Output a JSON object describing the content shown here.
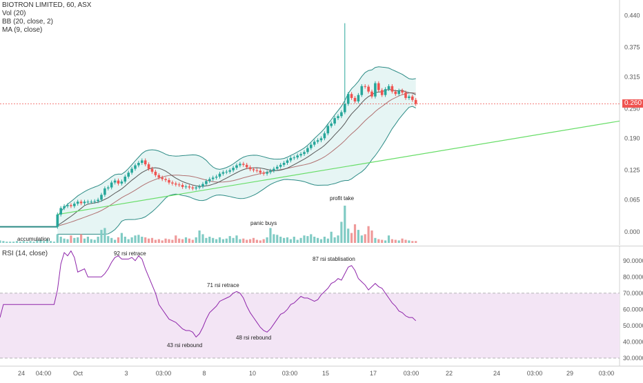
{
  "legend": {
    "symbol": "BIOTRON LIMITED, 60, ASX",
    "volume": "Vol (20)",
    "bb": "BB (20, close, 2)",
    "ma": "MA (9, close)",
    "rsi": "RSI (14, close)"
  },
  "price_axis": {
    "ticks": [
      "0.440",
      "0.375",
      "0.315",
      "0.250",
      "0.190",
      "0.125",
      "0.065",
      "0.000"
    ],
    "current_price": "0.260"
  },
  "rsi_axis": {
    "ticks": [
      "90.0000",
      "80.0000",
      "70.0000",
      "60.0000",
      "50.0000",
      "40.0000",
      "30.0000"
    ]
  },
  "time_axis": {
    "ticks": [
      "24",
      "04:00",
      "Oct",
      "3",
      "03:00",
      "8",
      "10",
      "03:00",
      "15",
      "17",
      "03:00",
      "22",
      "24",
      "03:00",
      "29",
      "03:00"
    ]
  },
  "annotations": {
    "accumulation": "accumulation",
    "panic_buys": "panic buys",
    "profit_take": "profit take",
    "rsi_92": "92 rsi retrace",
    "rsi_71": "71 rsi retrace",
    "rsi_87": "87 rsi stablisation",
    "rsi_43": "43 rsi rebound",
    "rsi_48": "48 rsi rebound"
  },
  "colors": {
    "up": "#26a69a",
    "down": "#ef5350",
    "bb_fill": "#e0f2f1",
    "rsi_band": "#f3e5f5",
    "rsi_line": "#8e24aa",
    "trendline": "#66dd66",
    "ma": "#555555"
  },
  "chart_data": {
    "type": "candlestick",
    "y_range": [
      -0.02,
      0.46
    ],
    "close_prices": [
      0.01,
      0.01,
      0.01,
      0.01,
      0.01,
      0.01,
      0.01,
      0.01,
      0.01,
      0.01,
      0.01,
      0.01,
      0.01,
      0.01,
      0.01,
      0.01,
      0.01,
      0.035,
      0.048,
      0.052,
      0.054,
      0.052,
      0.057,
      0.061,
      0.058,
      0.061,
      0.061,
      0.061,
      0.062,
      0.065,
      0.075,
      0.088,
      0.09,
      0.1,
      0.104,
      0.098,
      0.102,
      0.112,
      0.12,
      0.128,
      0.135,
      0.14,
      0.145,
      0.137,
      0.128,
      0.122,
      0.115,
      0.11,
      0.107,
      0.105,
      0.1,
      0.098,
      0.096,
      0.095,
      0.091,
      0.092,
      0.09,
      0.088,
      0.09,
      0.092,
      0.097,
      0.103,
      0.107,
      0.11,
      0.112,
      0.118,
      0.121,
      0.122,
      0.125,
      0.13,
      0.135,
      0.138,
      0.136,
      0.131,
      0.127,
      0.125,
      0.124,
      0.12,
      0.118,
      0.121,
      0.124,
      0.128,
      0.132,
      0.136,
      0.14,
      0.145,
      0.15,
      0.151,
      0.155,
      0.158,
      0.162,
      0.17,
      0.177,
      0.183,
      0.186,
      0.19,
      0.2,
      0.215,
      0.22,
      0.231,
      0.235,
      0.243,
      0.26,
      0.28,
      0.272,
      0.265,
      0.278,
      0.296,
      0.295,
      0.285,
      0.275,
      0.302,
      0.288,
      0.278,
      0.29,
      0.296,
      0.285,
      0.28,
      0.287,
      0.283,
      0.272,
      0.275,
      0.268,
      0.26
    ],
    "rsi_values": [
      55,
      63,
      63,
      63,
      63,
      63,
      63,
      63,
      63,
      63,
      63,
      63,
      63,
      63,
      63,
      63,
      63,
      72,
      88,
      95,
      93,
      96,
      92,
      83,
      84,
      85,
      80,
      80,
      80,
      80,
      80,
      82,
      85,
      89,
      92,
      93,
      91,
      91,
      91,
      92,
      90,
      93,
      91,
      85,
      80,
      75,
      70,
      63,
      60,
      57,
      54,
      53,
      52,
      50,
      48,
      47,
      47,
      46,
      43,
      45,
      49,
      54,
      58,
      60,
      62,
      65,
      66,
      67,
      68,
      70,
      71,
      70,
      67,
      62,
      58,
      55,
      52,
      49,
      47,
      46,
      48,
      51,
      54,
      57,
      58,
      60,
      63,
      64,
      66,
      68,
      67,
      67,
      66,
      65,
      66,
      69,
      71,
      73,
      76,
      77,
      79,
      78,
      82,
      86,
      87,
      84,
      79,
      77,
      75,
      72,
      74,
      76,
      74,
      73,
      70,
      67,
      64,
      62,
      59,
      58,
      56,
      55,
      55,
      53
    ]
  }
}
